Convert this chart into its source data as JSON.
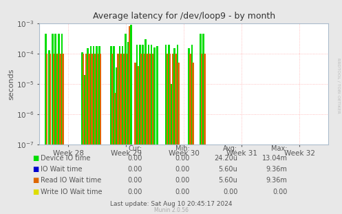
{
  "title": "Average latency for /dev/loop9 - by month",
  "ylabel": "seconds",
  "background_color": "#e8e8e8",
  "plot_bg_color": "#ffffff",
  "grid_color": "#ffaaaa",
  "week_labels": [
    "Week 28",
    "Week 29",
    "Week 30",
    "Week 31",
    "Week 32"
  ],
  "ylim_min": 1e-07,
  "ylim_max": 0.001,
  "xlim_min": 0,
  "xlim_max": 1.0,
  "legend_entries": [
    {
      "label": "Device IO time",
      "color": "#00dd00"
    },
    {
      "label": "IO Wait time",
      "color": "#0000cc"
    },
    {
      "label": "Read IO Wait time",
      "color": "#dd6600"
    },
    {
      "label": "Write IO Wait time",
      "color": "#dddd00"
    }
  ],
  "table_headers": [
    "Cur:",
    "Min:",
    "Avg:",
    "Max:"
  ],
  "table_rows": [
    [
      "0.00",
      "0.00",
      "24.20u",
      "13.04m"
    ],
    [
      "0.00",
      "0.00",
      "5.60u",
      "9.36m"
    ],
    [
      "0.00",
      "0.00",
      "5.60u",
      "9.36m"
    ],
    [
      "0.00",
      "0.00",
      "0.00",
      "0.00"
    ]
  ],
  "footer": "Last update: Sat Aug 10 20:45:17 2024",
  "watermark": "Munin 2.0.56",
  "rrdtool_label": "RRDTOOL / TOBI OETIKER",
  "green_bars": [
    [
      0.022,
      0.00045
    ],
    [
      0.034,
      0.00013
    ],
    [
      0.046,
      0.00045
    ],
    [
      0.056,
      0.00045
    ],
    [
      0.068,
      0.00045
    ],
    [
      0.078,
      0.00045
    ],
    [
      0.148,
      0.00011
    ],
    [
      0.158,
      2e-05
    ],
    [
      0.168,
      0.00015
    ],
    [
      0.178,
      0.00018
    ],
    [
      0.188,
      0.00018
    ],
    [
      0.198,
      0.00018
    ],
    [
      0.208,
      0.00018
    ],
    [
      0.248,
      0.00018
    ],
    [
      0.258,
      0.00018
    ],
    [
      0.268,
      3.5e-05
    ],
    [
      0.278,
      0.00018
    ],
    [
      0.288,
      0.00018
    ],
    [
      0.298,
      0.00045
    ],
    [
      0.308,
      0.00025
    ],
    [
      0.318,
      0.0009
    ],
    [
      0.338,
      0.0002
    ],
    [
      0.348,
      0.0002
    ],
    [
      0.358,
      0.0002
    ],
    [
      0.368,
      0.0003
    ],
    [
      0.378,
      0.0002
    ],
    [
      0.388,
      0.0002
    ],
    [
      0.398,
      0.00016
    ],
    [
      0.408,
      0.00018
    ],
    [
      0.438,
      0.0002
    ],
    [
      0.448,
      0.0002
    ],
    [
      0.458,
      1e-05
    ],
    [
      0.468,
      0.00015
    ],
    [
      0.478,
      0.0002
    ],
    [
      0.518,
      0.00015
    ],
    [
      0.528,
      0.0002
    ],
    [
      0.558,
      0.00045
    ],
    [
      0.568,
      0.00045
    ]
  ],
  "orange_bars": [
    [
      0.026,
      0.0001
    ],
    [
      0.038,
      0.0001
    ],
    [
      0.05,
      0.0001
    ],
    [
      0.062,
      0.0001
    ],
    [
      0.072,
      0.0001
    ],
    [
      0.082,
      0.0001
    ],
    [
      0.152,
      0.0001
    ],
    [
      0.162,
      0.0001
    ],
    [
      0.172,
      0.0001
    ],
    [
      0.182,
      0.0001
    ],
    [
      0.192,
      0.0001
    ],
    [
      0.202,
      0.0001
    ],
    [
      0.212,
      0.0001
    ],
    [
      0.252,
      0.0001
    ],
    [
      0.262,
      5e-06
    ],
    [
      0.272,
      0.0001
    ],
    [
      0.282,
      0.0001
    ],
    [
      0.292,
      0.0001
    ],
    [
      0.302,
      0.0001
    ],
    [
      0.312,
      0.0008
    ],
    [
      0.332,
      5e-05
    ],
    [
      0.342,
      4e-05
    ],
    [
      0.352,
      0.0001
    ],
    [
      0.362,
      0.0001
    ],
    [
      0.372,
      0.0001
    ],
    [
      0.382,
      0.0001
    ],
    [
      0.392,
      0.0001
    ],
    [
      0.442,
      0.0001
    ],
    [
      0.452,
      0.0001
    ],
    [
      0.462,
      0.0001
    ],
    [
      0.472,
      0.0001
    ],
    [
      0.482,
      5e-05
    ],
    [
      0.522,
      0.0001
    ],
    [
      0.532,
      5e-05
    ],
    [
      0.562,
      0.0001
    ],
    [
      0.572,
      0.0001
    ]
  ]
}
